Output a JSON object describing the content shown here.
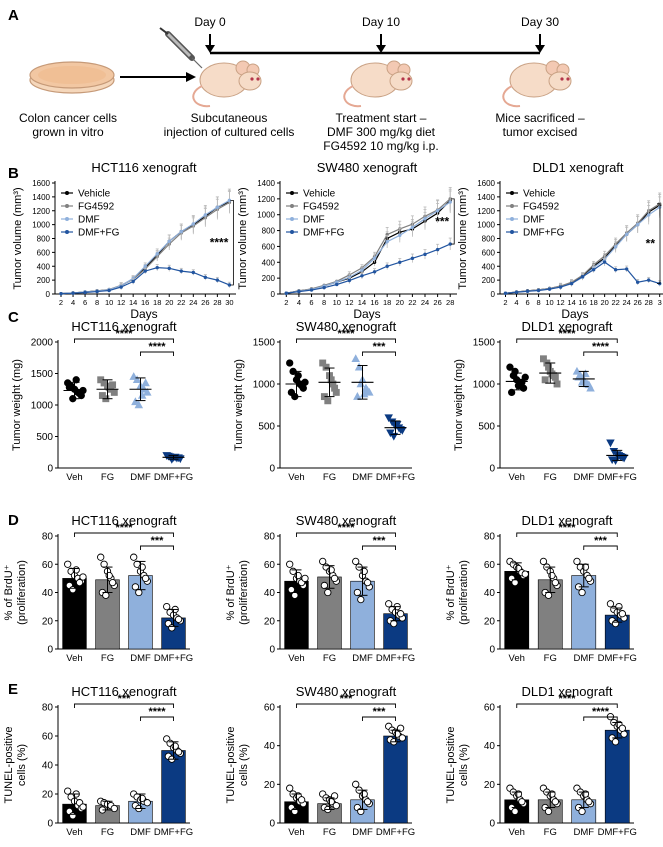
{
  "colors": {
    "vehicle": "#000000",
    "fg": "#808080",
    "dmf": "#8fb0dc",
    "combo": "#0b3a82",
    "line_combo": "#2255a0",
    "dish": "#f2c7a2",
    "mouse": "#f6dcc8"
  },
  "panel_letters": [
    "A",
    "B",
    "C",
    "D",
    "E"
  ],
  "schematic": {
    "day_labels": [
      "Day 0",
      "Day 10",
      "Day 30"
    ],
    "step1": [
      "Colon cancer cells",
      "grown in vitro"
    ],
    "step2": [
      "Subcutaneous",
      "injection of cultured cells"
    ],
    "step3": [
      "Treatment start –",
      "DMF 300 mg/kg diet",
      "FG4592 10 mg/kg i.p."
    ],
    "step4": [
      "Mice sacrificed –",
      "tumor excised"
    ]
  },
  "group_labels": [
    "Veh",
    "FG",
    "DMF",
    "DMF+FG"
  ],
  "chart_data": [
    {
      "type": "line",
      "title": "HCT116 xenograft",
      "xlabel": "Days",
      "ylabel": "Tumor volume (mm³)",
      "ylim": [
        0,
        1600
      ],
      "yticks": [
        0,
        200,
        400,
        600,
        800,
        1000,
        1200,
        1400,
        1600
      ],
      "x": [
        2,
        4,
        6,
        8,
        10,
        12,
        14,
        16,
        18,
        20,
        22,
        24,
        26,
        28,
        30
      ],
      "xlim": [
        1,
        30.6
      ],
      "legend": [
        "Vehicle",
        "FG4592",
        "DMF",
        "DMF+FG"
      ],
      "legend_position": "top-left",
      "series": [
        {
          "name": "Vehicle",
          "values": [
            5,
            15,
            30,
            45,
            60,
            120,
            220,
            380,
            560,
            760,
            900,
            1000,
            1120,
            1250,
            1330
          ]
        },
        {
          "name": "FG4592",
          "values": [
            5,
            15,
            28,
            45,
            65,
            125,
            210,
            360,
            540,
            720,
            880,
            980,
            1100,
            1220,
            1320
          ]
        },
        {
          "name": "DMF",
          "values": [
            5,
            14,
            30,
            42,
            60,
            120,
            225,
            400,
            580,
            760,
            900,
            1010,
            1140,
            1250,
            1350
          ]
        },
        {
          "name": "DMF+FG",
          "values": [
            5,
            12,
            22,
            35,
            50,
            100,
            180,
            330,
            380,
            370,
            330,
            310,
            240,
            200,
            130
          ]
        }
      ],
      "significance": "****"
    },
    {
      "type": "line",
      "title": "SW480 xenograft",
      "xlabel": "Days",
      "ylabel": "Tumor volume (mm³)",
      "ylim": [
        0,
        1400
      ],
      "yticks": [
        0,
        200,
        400,
        600,
        800,
        1000,
        1200,
        1400
      ],
      "x": [
        2,
        4,
        6,
        8,
        10,
        12,
        14,
        16,
        18,
        20,
        22,
        24,
        26,
        28
      ],
      "xlim": [
        1,
        28.6
      ],
      "legend": [
        "Vehicle",
        "FG4592",
        "DMF",
        "DMF+FG"
      ],
      "legend_position": "top-left",
      "series": [
        {
          "name": "Vehicle",
          "values": [
            10,
            40,
            60,
            100,
            150,
            200,
            280,
            400,
            700,
            780,
            820,
            920,
            1020,
            1180
          ]
        },
        {
          "name": "FG4592",
          "values": [
            10,
            38,
            65,
            110,
            160,
            240,
            330,
            470,
            750,
            820,
            880,
            980,
            1060,
            1200
          ]
        },
        {
          "name": "DMF",
          "values": [
            10,
            35,
            55,
            100,
            150,
            210,
            300,
            450,
            660,
            740,
            840,
            950,
            1050,
            1160
          ]
        },
        {
          "name": "DMF+FG",
          "values": [
            10,
            30,
            50,
            80,
            120,
            170,
            230,
            280,
            350,
            400,
            450,
            500,
            560,
            630
          ]
        }
      ],
      "significance": "***"
    },
    {
      "type": "line",
      "title": "DLD1 xenograft",
      "xlabel": "Days",
      "ylabel": "Tumor volume (mm³)",
      "ylim": [
        0,
        1600
      ],
      "yticks": [
        0,
        200,
        400,
        600,
        800,
        1000,
        1200,
        1400,
        1600
      ],
      "x": [
        2,
        4,
        6,
        8,
        10,
        12,
        14,
        16,
        18,
        20,
        22,
        24,
        26,
        28,
        30
      ],
      "xlim": [
        1,
        30.6
      ],
      "tick_labels_visible": [
        "2",
        "4",
        "6",
        "8",
        "10",
        "12",
        "14",
        "16",
        "18",
        "20",
        "22",
        "24",
        "26",
        "28",
        "3"
      ],
      "legend": [
        "Vehicle",
        "FG4592",
        "DMF",
        "DMF+FG"
      ],
      "legend_position": "top-left",
      "series": [
        {
          "name": "Vehicle",
          "values": [
            10,
            30,
            45,
            60,
            80,
            110,
            160,
            260,
            400,
            520,
            700,
            860,
            1000,
            1180,
            1280
          ]
        },
        {
          "name": "FG4592",
          "values": [
            10,
            28,
            45,
            60,
            80,
            115,
            170,
            270,
            420,
            550,
            720,
            880,
            1020,
            1200,
            1300
          ]
        },
        {
          "name": "DMF",
          "values": [
            10,
            28,
            40,
            55,
            75,
            100,
            150,
            240,
            380,
            500,
            680,
            860,
            1000,
            1140,
            1250
          ]
        },
        {
          "name": "DMF+FG",
          "values": [
            10,
            25,
            40,
            50,
            70,
            100,
            150,
            250,
            350,
            460,
            350,
            360,
            170,
            200,
            150
          ]
        }
      ],
      "significance": "**"
    },
    {
      "type": "scatter",
      "title": "HCT116 xenograft",
      "ylabel": "Tumor weight (mg)",
      "ylim": [
        0,
        2000
      ],
      "yticks": [
        0,
        500,
        1000,
        1500,
        2000
      ],
      "categories": [
        "Veh",
        "FG",
        "DMF",
        "DMF+FG"
      ],
      "means": [
        1230,
        1250,
        1250,
        170
      ],
      "sd": [
        130,
        150,
        180,
        30
      ],
      "points": [
        [
          1350,
          1300,
          1250,
          1200,
          1150,
          1280,
          1100,
          1400,
          1180,
          1230
        ],
        [
          1400,
          1350,
          1300,
          1250,
          1200,
          1150,
          1100,
          1280,
          1320
        ],
        [
          1450,
          1400,
          1300,
          1250,
          1200,
          1050,
          1000,
          1150,
          1350
        ],
        [
          200,
          180,
          170,
          160,
          150,
          190,
          140,
          175,
          165
        ]
      ],
      "significance": [
        {
          "from": 0,
          "to": 3,
          "label": "****"
        },
        {
          "from": 2,
          "to": 3,
          "label": "****"
        }
      ]
    },
    {
      "type": "scatter",
      "title": "SW480 xenograft",
      "ylabel": "Tumor weight (mg)",
      "ylim": [
        0,
        1500
      ],
      "yticks": [
        0,
        500,
        1000,
        1500
      ],
      "categories": [
        "Veh",
        "FG",
        "DMF",
        "DMF+FG"
      ],
      "means": [
        1000,
        1020,
        1020,
        480
      ],
      "sd": [
        150,
        170,
        200,
        80
      ],
      "points": [
        [
          1250,
          1150,
          1050,
          1000,
          950,
          900,
          850,
          1100,
          980,
          1020
        ],
        [
          1250,
          1200,
          1100,
          1000,
          900,
          850,
          800,
          1050,
          950
        ],
        [
          1300,
          1200,
          1050,
          950,
          900,
          850,
          1000,
          880,
          920
        ],
        [
          600,
          550,
          500,
          480,
          450,
          420,
          380,
          520,
          460
        ]
      ],
      "significance": [
        {
          "from": 0,
          "to": 3,
          "label": "****"
        },
        {
          "from": 2,
          "to": 3,
          "label": "***"
        }
      ]
    },
    {
      "type": "scatter",
      "title": "DLD1 xenograft",
      "ylabel": "Tumor weight (mg)",
      "ylim": [
        0,
        1500
      ],
      "yticks": [
        0,
        500,
        1000,
        1500
      ],
      "categories": [
        "Veh",
        "FG",
        "DMF",
        "DMF+FG"
      ],
      "means": [
        1030,
        1130,
        1060,
        150
      ],
      "sd": [
        100,
        120,
        90,
        60
      ],
      "points": [
        [
          1200,
          1100,
          1050,
          1000,
          950,
          900,
          1150,
          980,
          1020,
          1080
        ],
        [
          1300,
          1250,
          1150,
          1100,
          1000,
          1050,
          1200,
          1120,
          1080
        ],
        [
          1150,
          1100,
          1050,
          1000,
          950,
          1080,
          1020,
          1120,
          990
        ],
        [
          300,
          200,
          160,
          140,
          120,
          100,
          90,
          150,
          130
        ]
      ],
      "significance": [
        {
          "from": 0,
          "to": 3,
          "label": "****"
        },
        {
          "from": 2,
          "to": 3,
          "label": "****"
        }
      ]
    },
    {
      "type": "bar",
      "title": "HCT116 xenograft",
      "ylabel": "% of BrdU⁺ (proliferation)",
      "ylim": [
        0,
        80
      ],
      "yticks": [
        0,
        20,
        40,
        60,
        80
      ],
      "categories": [
        "Veh",
        "FG",
        "DMF",
        "DMF+FG"
      ],
      "values": [
        50,
        49,
        52,
        22
      ],
      "sd": [
        7,
        9,
        10,
        6
      ],
      "points": [
        [
          60,
          55,
          52,
          50,
          48,
          45,
          42,
          56,
          47,
          51
        ],
        [
          65,
          60,
          55,
          50,
          45,
          40,
          38,
          52,
          47
        ],
        [
          65,
          60,
          55,
          52,
          48,
          44,
          40,
          58,
          50
        ],
        [
          30,
          26,
          24,
          22,
          20,
          18,
          15,
          28,
          21
        ]
      ],
      "significance": [
        {
          "from": 0,
          "to": 3,
          "label": "****"
        },
        {
          "from": 2,
          "to": 3,
          "label": "***"
        }
      ]
    },
    {
      "type": "bar",
      "title": "SW480 xenograft",
      "ylabel": "% of BrdU⁺ (proliferation)",
      "ylim": [
        0,
        80
      ],
      "yticks": [
        0,
        20,
        40,
        60,
        80
      ],
      "categories": [
        "Veh",
        "FG",
        "DMF",
        "DMF+FG"
      ],
      "values": [
        48,
        51,
        48,
        25
      ],
      "sd": [
        8,
        8,
        10,
        5
      ],
      "points": [
        [
          60,
          55,
          50,
          48,
          45,
          42,
          38,
          52,
          47,
          50
        ],
        [
          62,
          58,
          55,
          52,
          48,
          45,
          40,
          56,
          50
        ],
        [
          62,
          58,
          52,
          48,
          44,
          40,
          35,
          55,
          47
        ],
        [
          32,
          28,
          26,
          24,
          22,
          20,
          18,
          30,
          25
        ]
      ],
      "significance": [
        {
          "from": 0,
          "to": 3,
          "label": "****"
        },
        {
          "from": 2,
          "to": 3,
          "label": "***"
        }
      ]
    },
    {
      "type": "bar",
      "title": "DLD1 xenograft",
      "ylabel": "% of BrdU⁺ (proliferation)",
      "ylim": [
        0,
        80
      ],
      "yticks": [
        0,
        20,
        40,
        60,
        80
      ],
      "categories": [
        "Veh",
        "FG",
        "DMF",
        "DMF+FG"
      ],
      "values": [
        55,
        49,
        52,
        24
      ],
      "sd": [
        6,
        9,
        8,
        5
      ],
      "points": [
        [
          62,
          60,
          58,
          55,
          52,
          50,
          47,
          57,
          54,
          53
        ],
        [
          62,
          58,
          55,
          50,
          45,
          40,
          38,
          52,
          47
        ],
        [
          62,
          58,
          55,
          52,
          48,
          44,
          40,
          58,
          50
        ],
        [
          32,
          28,
          26,
          24,
          22,
          20,
          18,
          30,
          25
        ]
      ],
      "significance": [
        {
          "from": 0,
          "to": 3,
          "label": "****"
        },
        {
          "from": 2,
          "to": 3,
          "label": "***"
        }
      ]
    },
    {
      "type": "bar",
      "title": "HCT116 xenograft",
      "ylabel": "TUNEL-positive cells (%)",
      "ylim": [
        0,
        80
      ],
      "yticks": [
        0,
        20,
        40,
        60,
        80
      ],
      "categories": [
        "Veh",
        "FG",
        "DMF",
        "DMF+FG"
      ],
      "values": [
        13,
        12,
        15,
        50
      ],
      "sd": [
        7,
        3,
        5,
        6
      ],
      "points": [
        [
          22,
          18,
          15,
          12,
          10,
          8,
          5,
          20,
          14,
          11
        ],
        [
          15,
          14,
          13,
          12,
          10,
          9
        ],
        [
          20,
          18,
          16,
          15,
          14,
          12,
          10,
          17
        ],
        [
          58,
          55,
          52,
          50,
          48,
          46,
          44,
          53,
          49
        ]
      ],
      "significance": [
        {
          "from": 0,
          "to": 3,
          "label": "***"
        },
        {
          "from": 2,
          "to": 3,
          "label": "****"
        }
      ]
    },
    {
      "type": "bar",
      "title": "SW480 xenograft",
      "ylabel": "TUNEL-positive cells (%)",
      "ylim": [
        0,
        60
      ],
      "yticks": [
        0,
        20,
        40,
        60
      ],
      "categories": [
        "Veh",
        "FG",
        "DMF",
        "DMF+FG"
      ],
      "values": [
        11,
        10,
        12,
        45
      ],
      "sd": [
        4,
        3,
        5,
        3
      ],
      "points": [
        [
          18,
          15,
          13,
          11,
          10,
          8,
          6,
          14,
          12
        ],
        [
          15,
          13,
          12,
          10,
          9,
          8,
          7,
          11,
          14
        ],
        [
          20,
          17,
          14,
          12,
          10,
          8,
          6,
          15,
          11
        ],
        [
          50,
          48,
          47,
          45,
          44,
          43,
          42,
          46,
          49
        ]
      ],
      "significance": [
        {
          "from": 0,
          "to": 3,
          "label": "***"
        },
        {
          "from": 2,
          "to": 3,
          "label": "***"
        }
      ]
    },
    {
      "type": "bar",
      "title": "DLD1 xenograft",
      "ylabel": "TUNEL-positive cells (%)",
      "ylim": [
        0,
        60
      ],
      "yticks": [
        0,
        20,
        40,
        60
      ],
      "categories": [
        "Veh",
        "FG",
        "DMF",
        "DMF+FG"
      ],
      "values": [
        12,
        12,
        12,
        48
      ],
      "sd": [
        4,
        4,
        4,
        4
      ],
      "points": [
        [
          18,
          16,
          14,
          12,
          10,
          8,
          6,
          15,
          11
        ],
        [
          18,
          16,
          14,
          12,
          10,
          8,
          6,
          15,
          11
        ],
        [
          18,
          16,
          14,
          12,
          10,
          8,
          6,
          15,
          11
        ],
        [
          55,
          52,
          50,
          48,
          46,
          44,
          42,
          51,
          49
        ]
      ],
      "significance": [
        {
          "from": 0,
          "to": 3,
          "label": "****"
        },
        {
          "from": 2,
          "to": 3,
          "label": "****"
        }
      ]
    }
  ]
}
